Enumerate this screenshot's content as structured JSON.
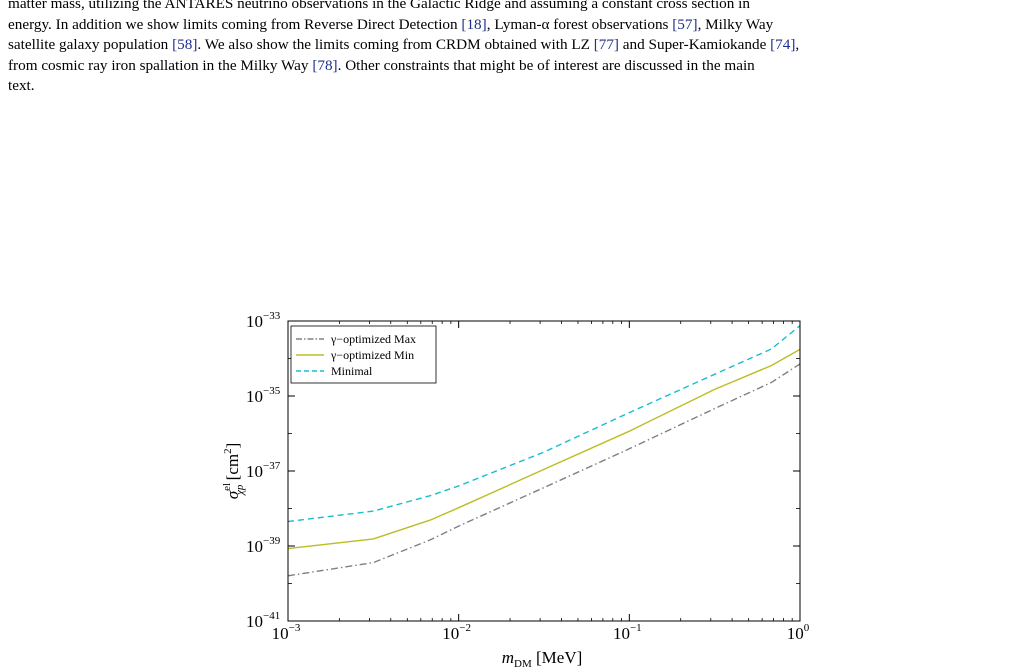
{
  "caption": {
    "line1": {
      "pre": "matter mass, utilizing the ANTARES neutrino observations in the Galactic Ridge and assuming a constant cross section in"
    },
    "line2": {
      "pre": "energy. In addition we show limits coming from Reverse Direct Detection ",
      "c1": "[18]",
      "mid1": ", Lyman-α forest observations ",
      "c2": "[57]",
      "post": ", Milky Way"
    },
    "line3": {
      "pre": "satellite galaxy population ",
      "c1": "[58]",
      "mid1": ". We also show the limits coming from CRDM obtained with LZ ",
      "c2": "[77]",
      "mid2": " and Super-Kamiokande ",
      "c3": "[74]",
      "post": ","
    },
    "line4": {
      "pre": "from cosmic ray iron spallation in the Milky Way ",
      "c1": "[78]",
      "post": ". Other constraints that might be of interest are discussed in the main"
    },
    "line5": {
      "pre": "text."
    }
  },
  "chart_data": {
    "type": "line",
    "x_scale": "log",
    "y_scale": "log",
    "xlim": [
      0.001,
      1
    ],
    "ylim": [
      1e-41,
      1e-33
    ],
    "xlabel": {
      "main": "m",
      "sub": "DM",
      "unit": " [MeV]"
    },
    "ylabel": {
      "main": "σ",
      "sup": "el",
      "sub": "χp",
      "unit": " [cm",
      "unit_sup": "2",
      "unit_end": "]"
    },
    "x_ticks": [
      {
        "value": 0.001,
        "base": "10",
        "exp": "−3"
      },
      {
        "value": 0.01,
        "base": "10",
        "exp": "−2"
      },
      {
        "value": 0.1,
        "base": "10",
        "exp": "−1"
      },
      {
        "value": 1,
        "base": "10",
        "exp": "0"
      }
    ],
    "y_ticks": [
      {
        "value": 1e-41,
        "base": "10",
        "exp": "−41"
      },
      {
        "value": 1e-39,
        "base": "10",
        "exp": "−39"
      },
      {
        "value": 1e-37,
        "base": "10",
        "exp": "−37"
      },
      {
        "value": 1e-35,
        "base": "10",
        "exp": "−35"
      },
      {
        "value": 1e-33,
        "base": "10",
        "exp": "−33"
      }
    ],
    "legend_position": "top-left",
    "series": [
      {
        "name": "γ−optimized Max",
        "color": "#808080",
        "style": "dashdot",
        "x": [
          0.001,
          0.00316,
          0.00681,
          0.01,
          0.0316,
          0.1,
          0.316,
          0.681,
          1
        ],
        "y": [
          1.6e-40,
          3.6e-40,
          1.45e-39,
          3.4e-39,
          3.6e-38,
          3.9e-37,
          4.6e-36,
          2.3e-35,
          7.2e-35
        ]
      },
      {
        "name": "γ−optimized Min",
        "color": "#bcbd22",
        "style": "solid",
        "x": [
          0.001,
          0.00316,
          0.00681,
          0.01,
          0.0316,
          0.1,
          0.316,
          0.681,
          1
        ],
        "y": [
          8.5e-40,
          1.55e-39,
          4.9e-39,
          1.05e-38,
          1.1e-37,
          1.15e-36,
          1.5e-35,
          6.5e-35,
          1.75e-34
        ]
      },
      {
        "name": "Minimal",
        "color": "#17becf",
        "style": "dashed",
        "x": [
          0.001,
          0.00316,
          0.00681,
          0.01,
          0.0316,
          0.1,
          0.316,
          0.681,
          1
        ],
        "y": [
          4.5e-39,
          8.5e-39,
          2.2e-38,
          4e-38,
          3.2e-37,
          3.6e-36,
          3.8e-35,
          1.8e-34,
          7.5e-34
        ]
      }
    ]
  }
}
